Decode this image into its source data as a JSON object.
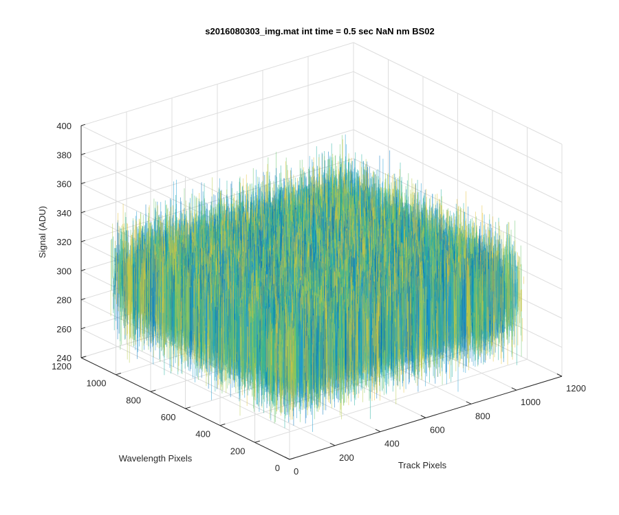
{
  "chart_data": {
    "type": "surface",
    "title": "s2016080303_img.mat int time = 0.5 sec  NaN nm BS02",
    "xlabel": "Track Pixels",
    "ylabel": "Wavelength Pixels",
    "zlabel": "Signal (ADU)",
    "xlim": [
      0,
      1200
    ],
    "ylim": [
      0,
      1200
    ],
    "zlim": [
      240,
      400
    ],
    "x_ticks": [
      "0",
      "200",
      "400",
      "600",
      "800",
      "1000",
      "1200"
    ],
    "y_ticks": [
      "0",
      "200",
      "400",
      "600",
      "800",
      "1000",
      "1200"
    ],
    "z_ticks": [
      "240",
      "260",
      "280",
      "300",
      "320",
      "340",
      "360",
      "380",
      "400"
    ],
    "surface_extent": {
      "x": [
        0,
        1024
      ],
      "y": [
        0,
        1024
      ]
    },
    "signal_mean": 305,
    "signal_range": [
      250,
      380
    ],
    "colormap": [
      "#0072bd",
      "#1d9bd1",
      "#21b1a0",
      "#67c56b",
      "#b7cc4a",
      "#e4c23b"
    ],
    "grid": true
  }
}
